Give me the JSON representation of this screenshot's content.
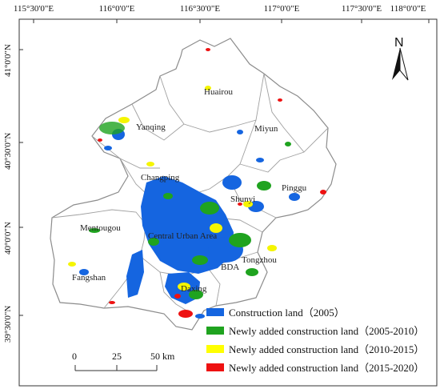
{
  "longitude_ticks": [
    "115°30'0\"E",
    "116°0'0\"E",
    "116°30'0\"E",
    "117°0'0\"E",
    "117°30'0\"E",
    "118°0'0\"E"
  ],
  "latitude_ticks": [
    "41°0'0\"N",
    "40°30'0\"N",
    "40°0'0\"N",
    "39°30'0\"N"
  ],
  "north_arrow": {
    "label": "N",
    "icon": "north-arrow-icon"
  },
  "place_labels": [
    "Huairou",
    "Yanqing",
    "Miyun",
    "Changping",
    "Shunyi",
    "Pinggu",
    "Mentougou",
    "Central Urban Area",
    "Tongzhou",
    "BDA",
    "Fangshan",
    "Daxing"
  ],
  "legend": [
    {
      "label": "Construction land（2005）",
      "color": "#1565e0"
    },
    {
      "label": "Newly added construction land（2005-2010）",
      "color": "#1fa31f"
    },
    {
      "label": "Newly added construction land（2010-2015）",
      "color": "#ffff00"
    },
    {
      "label": "Newly added construction land（2015-2020）",
      "color": "#ee1111"
    }
  ],
  "scale_bar": {
    "labels": [
      "0",
      "25",
      "50 km"
    ]
  },
  "colors": {
    "frame": "#333333",
    "boundary": "#8c8c8c",
    "land": "#ffffff",
    "urban": "#1565e0"
  }
}
